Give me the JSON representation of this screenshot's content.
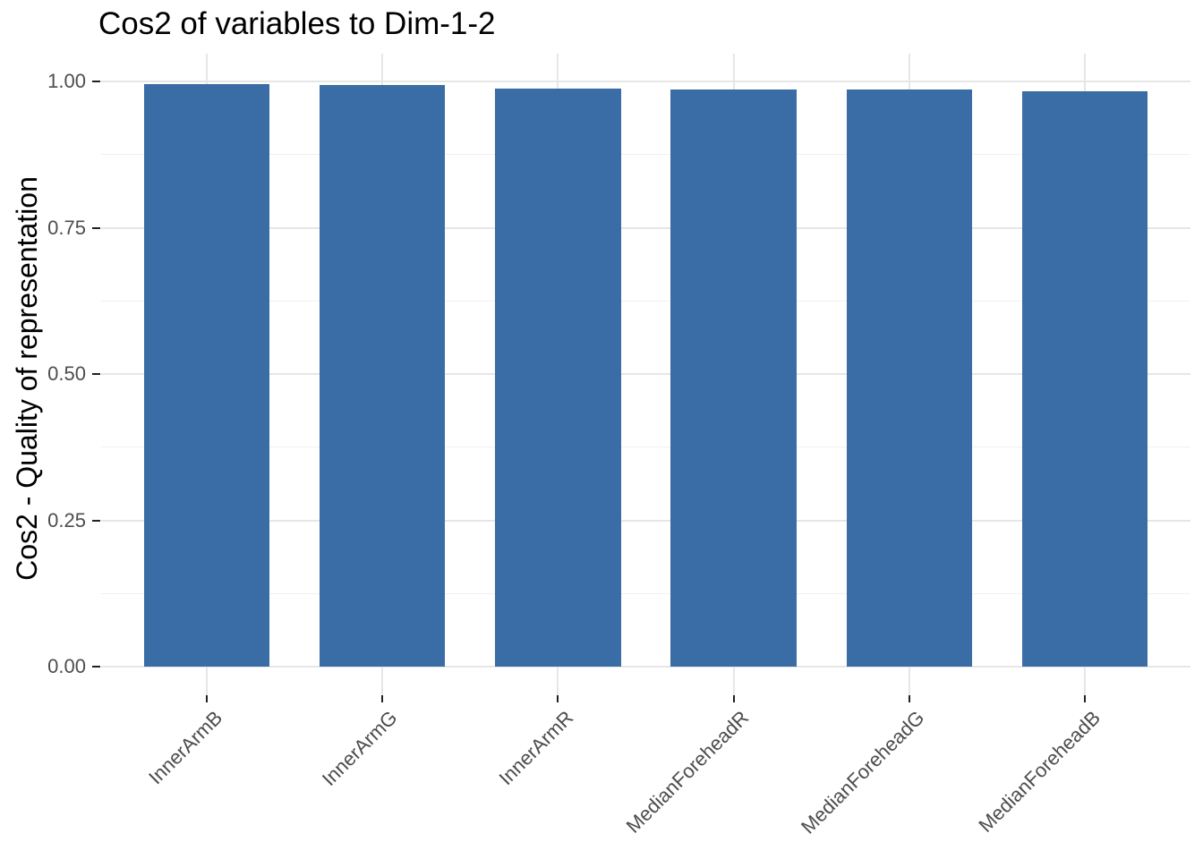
{
  "chart_data": {
    "type": "bar",
    "title": "Cos2 of variables to Dim-1-2",
    "ylabel": "Cos2 - Quality of representation",
    "xlabel": "",
    "categories": [
      "InnerArmB",
      "InnerArmG",
      "InnerArmR",
      "MedianForeheadR",
      "MedianForeheadG",
      "MedianForeheadB"
    ],
    "values": [
      0.996,
      0.994,
      0.988,
      0.987,
      0.986,
      0.983
    ],
    "ylim": [
      0,
      1.0
    ],
    "y_axis": {
      "ticks": [
        {
          "value": 0.0,
          "label": "0.00"
        },
        {
          "value": 0.25,
          "label": "0.25"
        },
        {
          "value": 0.5,
          "label": "0.50"
        },
        {
          "value": 0.75,
          "label": "0.75"
        },
        {
          "value": 1.0,
          "label": "1.00"
        }
      ],
      "minor_gridlines": [
        0.125,
        0.375,
        0.625,
        0.875
      ]
    },
    "x_tick_angle_deg": 45,
    "legend": "none",
    "grid": {
      "horizontal_major": true,
      "horizontal_minor": true,
      "vertical_major_at_categories": true
    },
    "colors": {
      "bar_fill": "#3A6DA5",
      "grid_major": "#E6E6E6",
      "grid_minor": "#F0F0F0",
      "tick_mark": "#222222",
      "tick_label": "#4D4D4D",
      "title": "#000000",
      "axis_title": "#000000",
      "background": "#FFFFFF"
    }
  }
}
